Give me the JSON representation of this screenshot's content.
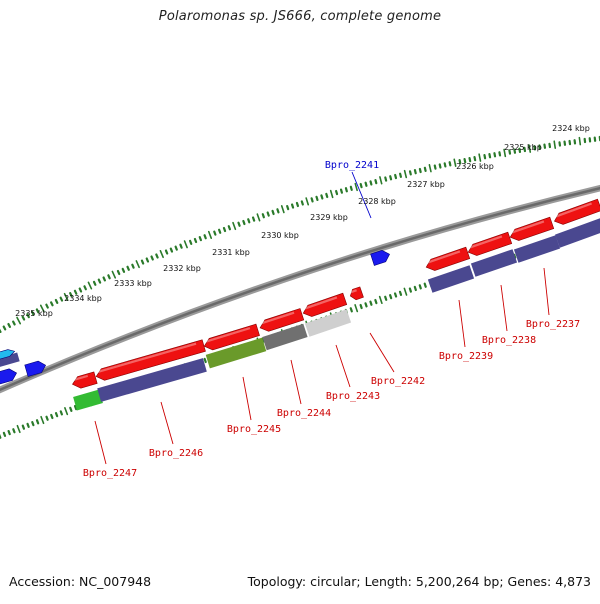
{
  "title": "Polaromonas sp. JS666, complete genome",
  "footer": {
    "accession": "Accession: NC_007948",
    "summary": "Topology: circular; Length: 5,200,264 bp; Genes: 4,873"
  },
  "colors": {
    "backbone": "#808080",
    "tick_marks": "#2a7a2a",
    "gene_red": "#ee1111",
    "gene_blue": "#1a1aee",
    "gene_cyan": "#22bbee",
    "cog_purple": "#4a4890",
    "cog_green": "#33bb33",
    "cog_olive": "#6a9a2a",
    "cog_gray": "#707070",
    "cog_lightgray": "#cfcfcf",
    "label_red": "#cc0000",
    "label_blue": "#0000cc"
  },
  "scale_labels": [
    {
      "text": "2324 kbp"
    },
    {
      "text": "2325 kbp"
    },
    {
      "text": "2326 kbp"
    },
    {
      "text": "2327 kbp"
    },
    {
      "text": "2328 kbp"
    },
    {
      "text": "2329 kbp"
    },
    {
      "text": "2330 kbp"
    },
    {
      "text": "2331 kbp"
    },
    {
      "text": "2332 kbp"
    },
    {
      "text": "2333 kbp"
    },
    {
      "text": "2334 kbp"
    },
    {
      "text": "2335 kbp"
    }
  ],
  "gene_labels": [
    {
      "text": "Bpro_2241",
      "color": "label_blue"
    },
    {
      "text": "Bpro_2242",
      "color": "label_red"
    },
    {
      "text": "Bpro_2243",
      "color": "label_red"
    },
    {
      "text": "Bpro_2244",
      "color": "label_red"
    },
    {
      "text": "Bpro_2245",
      "color": "label_red"
    },
    {
      "text": "Bpro_2246",
      "color": "label_red"
    },
    {
      "text": "Bpro_2247",
      "color": "label_red"
    },
    {
      "text": "Bpro_2239",
      "color": "label_red"
    },
    {
      "text": "Bpro_2238",
      "color": "label_red"
    },
    {
      "text": "Bpro_2237",
      "color": "label_red"
    }
  ]
}
